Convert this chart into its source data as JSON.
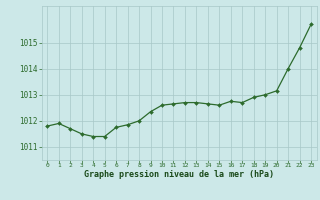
{
  "x": [
    0,
    1,
    2,
    3,
    4,
    5,
    6,
    7,
    8,
    9,
    10,
    11,
    12,
    13,
    14,
    15,
    16,
    17,
    18,
    19,
    20,
    21,
    22,
    23
  ],
  "y": [
    1011.8,
    1011.9,
    1011.7,
    1011.5,
    1011.4,
    1011.4,
    1011.75,
    1011.85,
    1012.0,
    1012.35,
    1012.6,
    1012.65,
    1012.7,
    1012.7,
    1012.65,
    1012.6,
    1012.75,
    1012.7,
    1012.9,
    1013.0,
    1013.15,
    1014.0,
    1014.8,
    1015.7
  ],
  "line_color": "#2d6b2d",
  "marker_color": "#2d6b2d",
  "bg_color": "#cce8e8",
  "grid_color": "#a8c8c8",
  "xlabel": "Graphe pression niveau de la mer (hPa)",
  "xlabel_color": "#1a4a1a",
  "tick_label_color": "#2d6b2d",
  "ylim_min": 1010.5,
  "ylim_max": 1016.4,
  "yticks": [
    1011,
    1012,
    1013,
    1014,
    1015
  ],
  "xtick_labels": [
    "0",
    "1",
    "2",
    "3",
    "4",
    "5",
    "6",
    "7",
    "8",
    "9",
    "10",
    "11",
    "12",
    "13",
    "14",
    "15",
    "16",
    "17",
    "18",
    "19",
    "20",
    "21",
    "22",
    "23"
  ]
}
